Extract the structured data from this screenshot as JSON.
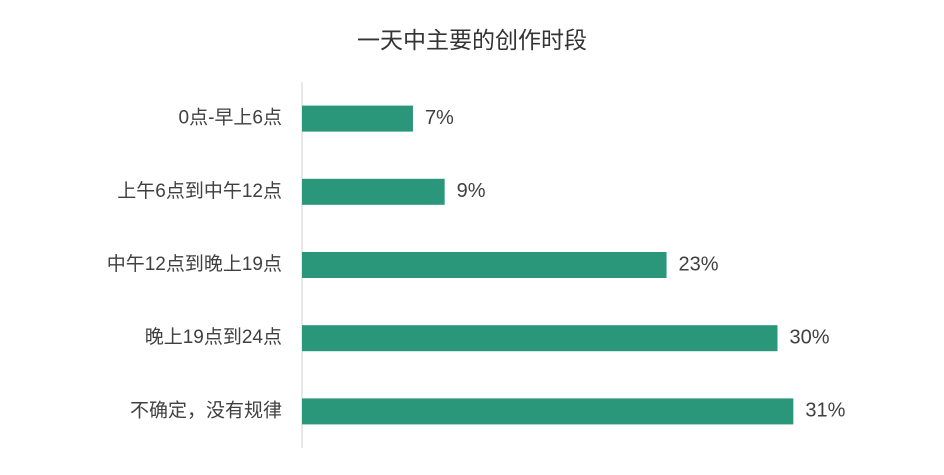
{
  "chart_data": {
    "type": "bar",
    "orientation": "horizontal",
    "title": "一天中主要的创作时段",
    "categories": [
      "0点-早上6点",
      "上午6点到中午12点",
      "中午12点到晚上19点",
      "晚上19点到24点",
      "不确定，没有规律"
    ],
    "values": [
      7,
      9,
      23,
      30,
      31
    ],
    "value_labels": [
      "7%",
      "9%",
      "23%",
      "30%",
      "31%"
    ],
    "color": "#2a967a"
  }
}
